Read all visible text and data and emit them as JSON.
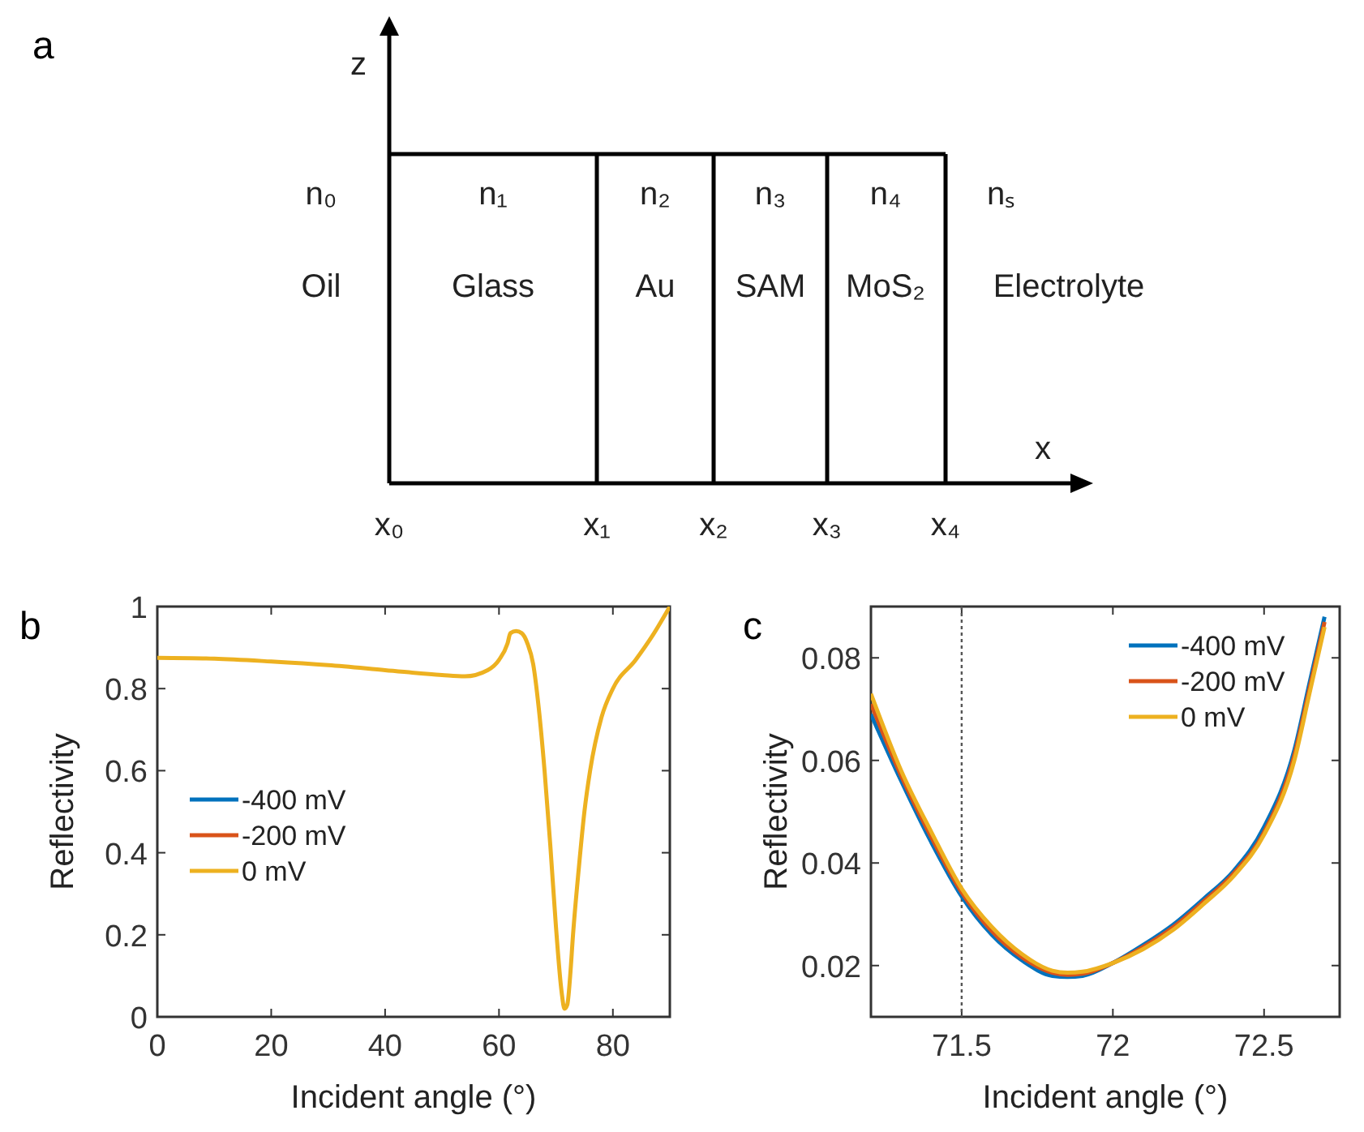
{
  "chart_data": [
    {
      "type": "other",
      "title": "a",
      "annotations": [
        "z",
        "x",
        "n₀",
        "n₁",
        "n₂",
        "n₃",
        "n₄",
        "nₛ",
        "Oil",
        "Glass",
        "Au",
        "SAM",
        "MoS₂",
        "Electrolyte",
        "x₀",
        "x₁",
        "x₂",
        "x₃",
        "x₄"
      ]
    },
    {
      "type": "line",
      "title": "b",
      "xlabel": "Incident angle (°)",
      "ylabel": "Reflectivity",
      "x": [
        0,
        10,
        20,
        30,
        40,
        50,
        54,
        58,
        60,
        61.5,
        62,
        63,
        64,
        65,
        66,
        67,
        68,
        69,
        70,
        71,
        71.5,
        72,
        72.5,
        73,
        74,
        75,
        76,
        78,
        80,
        84,
        87,
        90
      ],
      "xlim": [
        0,
        90
      ],
      "xticks": [
        0,
        20,
        40,
        60,
        80
      ],
      "ylim": [
        0,
        1
      ],
      "yticks": [
        0,
        0.2,
        0.4,
        0.6,
        0.8,
        1
      ],
      "legend": "bottom left",
      "series": [
        {
          "name": "-400 mV",
          "color": "#0072bd",
          "values": [
            null,
            null,
            null,
            null,
            null,
            null,
            null,
            null,
            null,
            null,
            null,
            null,
            null,
            null,
            null,
            null,
            null,
            null,
            null,
            null,
            null,
            null,
            null,
            null,
            null,
            null,
            null,
            null,
            null,
            null,
            null,
            null
          ]
        },
        {
          "name": "-200 mV",
          "color": "#d95319",
          "values": [
            null,
            null,
            null,
            null,
            null,
            null,
            null,
            null,
            null,
            null,
            null,
            null,
            null,
            null,
            null,
            null,
            null,
            null,
            null,
            null,
            null,
            null,
            null,
            null,
            null,
            null,
            null,
            null,
            null,
            null,
            null,
            null
          ]
        },
        {
          "name": "0 mV",
          "color": "#edb120",
          "values": [
            0.875,
            0.873,
            0.866,
            0.857,
            0.845,
            0.833,
            0.83,
            0.845,
            0.87,
            0.91,
            0.935,
            0.94,
            0.935,
            0.91,
            0.86,
            0.75,
            0.6,
            0.42,
            0.22,
            0.06,
            0.02,
            0.03,
            0.1,
            0.2,
            0.36,
            0.5,
            0.6,
            0.73,
            0.8,
            0.87,
            0.93,
            1
          ]
        }
      ]
    },
    {
      "type": "line",
      "title": "c",
      "xlabel": "Incident angle (°)",
      "ylabel": "Reflectivity",
      "x": [
        71.2,
        71.3,
        71.4,
        71.5,
        71.6,
        71.7,
        71.8,
        71.85,
        71.9,
        72,
        72.1,
        72.2,
        72.3,
        72.4,
        72.5,
        72.6,
        72.65,
        72.7
      ],
      "xlim": [
        71.2,
        72.75
      ],
      "xticks": [
        71.5,
        72,
        72.5
      ],
      "ylim": [
        0.01,
        0.09
      ],
      "yticks": [
        0.02,
        0.04,
        0.06,
        0.08
      ],
      "legend": "top right",
      "ref_lines": [
        {
          "axis": "x",
          "value": 71.5,
          "color": "#555555",
          "line_style": "dotted"
        }
      ],
      "series": [
        {
          "name": "-400 mV",
          "color": "#0072bd",
          "values": [
            0.069,
            0.056,
            0.044,
            0.0335,
            0.026,
            0.021,
            0.018,
            0.0178,
            0.018,
            0.0205,
            0.024,
            0.028,
            0.033,
            0.0385,
            0.047,
            0.062,
            0.075,
            0.088
          ]
        },
        {
          "name": "-200 mV",
          "color": "#d95319",
          "values": [
            0.071,
            0.057,
            0.045,
            0.0343,
            0.0267,
            0.0216,
            0.0186,
            0.0182,
            0.0184,
            0.0205,
            0.0236,
            0.0275,
            0.0325,
            0.038,
            0.046,
            0.061,
            0.074,
            0.087
          ]
        },
        {
          "name": "0 mV",
          "color": "#edb120",
          "values": [
            0.073,
            0.058,
            0.046,
            0.035,
            0.0275,
            0.0222,
            0.019,
            0.0186,
            0.0188,
            0.0205,
            0.0232,
            0.027,
            0.032,
            0.0375,
            0.0455,
            0.06,
            0.073,
            0.086
          ]
        }
      ]
    }
  ]
}
